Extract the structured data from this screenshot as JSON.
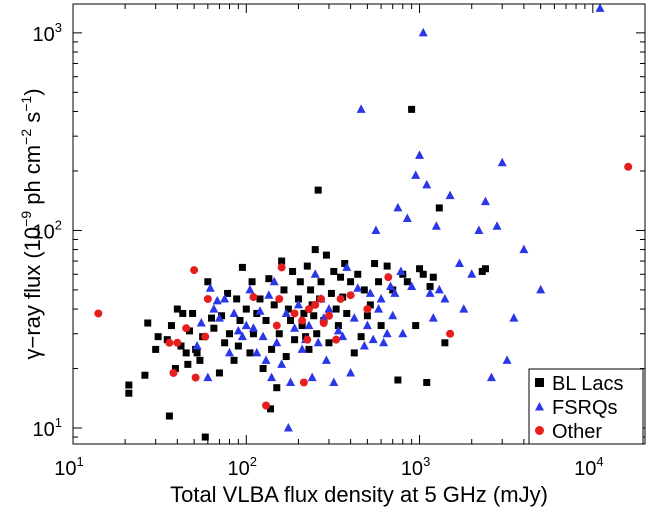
{
  "chart_data": {
    "type": "scatter",
    "title": "",
    "xlabel": "Total VLBA flux density at 5 GHz (mJy)",
    "ylabel": {
      "prefix": "γ−ray flux (10",
      "exp1": "−9",
      "mid": " ph cm",
      "exp2": "−2",
      "mid2": " s",
      "exp3": "−1",
      "suffix": ")"
    },
    "x_scale": "log",
    "y_scale": "log",
    "xlim": [
      10,
      20000
    ],
    "ylim": [
      8.3,
      1400
    ],
    "x_ticks": [
      {
        "value": 10,
        "base": "10",
        "exp": "1"
      },
      {
        "value": 100,
        "base": "10",
        "exp": "2"
      },
      {
        "value": 1000,
        "base": "10",
        "exp": "3"
      },
      {
        "value": 10000,
        "base": "10",
        "exp": "4"
      }
    ],
    "y_ticks": [
      {
        "value": 10,
        "base": "10",
        "exp": "1"
      },
      {
        "value": 100,
        "base": "10",
        "exp": "2"
      },
      {
        "value": 1000,
        "base": "10",
        "exp": "3"
      }
    ],
    "grid": false,
    "legend_position": "bottom-right",
    "series": [
      {
        "name": "BL Lacs",
        "marker": "square",
        "color": "#000000",
        "points": [
          [
            21,
            15
          ],
          [
            21,
            16.5
          ],
          [
            26,
            18.5
          ],
          [
            27,
            34
          ],
          [
            30,
            25
          ],
          [
            31,
            29
          ],
          [
            35,
            28
          ],
          [
            36,
            11.5
          ],
          [
            37,
            33
          ],
          [
            39,
            20
          ],
          [
            40,
            40
          ],
          [
            42,
            26
          ],
          [
            43,
            38
          ],
          [
            45,
            24
          ],
          [
            46,
            21
          ],
          [
            47,
            31
          ],
          [
            49,
            38
          ],
          [
            51,
            25
          ],
          [
            52,
            24
          ],
          [
            54,
            22
          ],
          [
            56,
            29
          ],
          [
            58,
            9
          ],
          [
            60,
            55
          ],
          [
            63,
            36
          ],
          [
            65,
            32
          ],
          [
            70,
            19
          ],
          [
            72,
            37
          ],
          [
            75,
            27
          ],
          [
            78,
            48
          ],
          [
            80,
            30
          ],
          [
            85,
            22
          ],
          [
            88,
            45
          ],
          [
            90,
            26
          ],
          [
            92,
            35
          ],
          [
            95,
            65
          ],
          [
            100,
            40
          ],
          [
            105,
            24
          ],
          [
            108,
            55
          ],
          [
            110,
            30
          ],
          [
            115,
            38
          ],
          [
            120,
            45
          ],
          [
            125,
            20
          ],
          [
            130,
            35
          ],
          [
            135,
            57
          ],
          [
            138,
            12.5
          ],
          [
            140,
            25
          ],
          [
            145,
            42
          ],
          [
            150,
            16
          ],
          [
            155,
            30
          ],
          [
            160,
            70
          ],
          [
            165,
            50
          ],
          [
            170,
            23
          ],
          [
            175,
            40
          ],
          [
            180,
            35
          ],
          [
            185,
            62
          ],
          [
            190,
            28
          ],
          [
            200,
            45
          ],
          [
            205,
            55
          ],
          [
            210,
            33
          ],
          [
            215,
            38
          ],
          [
            220,
            29
          ],
          [
            225,
            66
          ],
          [
            230,
            25
          ],
          [
            235,
            50
          ],
          [
            240,
            42
          ],
          [
            245,
            37
          ],
          [
            250,
            80
          ],
          [
            255,
            30
          ],
          [
            260,
            160
          ],
          [
            265,
            45
          ],
          [
            270,
            55
          ],
          [
            280,
            35
          ],
          [
            290,
            75
          ],
          [
            300,
            27
          ],
          [
            310,
            48
          ],
          [
            320,
            62
          ],
          [
            330,
            40
          ],
          [
            340,
            33
          ],
          [
            350,
            58
          ],
          [
            360,
            46
          ],
          [
            370,
            68
          ],
          [
            380,
            38
          ],
          [
            400,
            55
          ],
          [
            420,
            24
          ],
          [
            440,
            60
          ],
          [
            460,
            29
          ],
          [
            480,
            50
          ],
          [
            500,
            37
          ],
          [
            520,
            42
          ],
          [
            550,
            68
          ],
          [
            580,
            55
          ],
          [
            600,
            33
          ],
          [
            650,
            66
          ],
          [
            700,
            50
          ],
          [
            750,
            17.5
          ],
          [
            800,
            60
          ],
          [
            850,
            55
          ],
          [
            900,
            410
          ],
          [
            950,
            33
          ],
          [
            1000,
            64
          ],
          [
            1050,
            60
          ],
          [
            1100,
            17
          ],
          [
            1150,
            52
          ],
          [
            1200,
            58
          ],
          [
            1300,
            130
          ],
          [
            1400,
            27
          ],
          [
            2300,
            62
          ],
          [
            2400,
            64
          ]
        ]
      },
      {
        "name": "FSRQs",
        "marker": "triangle",
        "color": "#2a37e6",
        "points": [
          [
            52,
            26
          ],
          [
            55,
            34
          ],
          [
            60,
            18
          ],
          [
            62,
            51
          ],
          [
            65,
            40
          ],
          [
            68,
            44
          ],
          [
            70,
            36
          ],
          [
            75,
            45
          ],
          [
            80,
            24
          ],
          [
            85,
            38
          ],
          [
            90,
            31
          ],
          [
            95,
            29
          ],
          [
            100,
            33
          ],
          [
            105,
            50
          ],
          [
            110,
            32
          ],
          [
            115,
            24
          ],
          [
            120,
            39
          ],
          [
            125,
            29
          ],
          [
            130,
            22
          ],
          [
            135,
            47
          ],
          [
            140,
            18
          ],
          [
            145,
            55
          ],
          [
            150,
            27
          ],
          [
            160,
            21
          ],
          [
            170,
            38
          ],
          [
            175,
            10
          ],
          [
            180,
            17
          ],
          [
            190,
            32
          ],
          [
            200,
            42
          ],
          [
            210,
            25
          ],
          [
            220,
            28
          ],
          [
            230,
            33
          ],
          [
            240,
            18
          ],
          [
            250,
            60
          ],
          [
            260,
            27
          ],
          [
            270,
            45
          ],
          [
            280,
            36
          ],
          [
            290,
            22
          ],
          [
            300,
            40
          ],
          [
            320,
            17
          ],
          [
            340,
            31
          ],
          [
            360,
            29
          ],
          [
            380,
            65
          ],
          [
            400,
            19
          ],
          [
            420,
            36
          ],
          [
            440,
            51
          ],
          [
            460,
            410
          ],
          [
            480,
            26
          ],
          [
            500,
            33
          ],
          [
            520,
            48
          ],
          [
            540,
            28
          ],
          [
            560,
            100
          ],
          [
            580,
            40
          ],
          [
            600,
            45
          ],
          [
            620,
            27
          ],
          [
            650,
            30
          ],
          [
            680,
            52
          ],
          [
            700,
            37
          ],
          [
            720,
            48
          ],
          [
            750,
            130
          ],
          [
            780,
            62
          ],
          [
            800,
            30
          ],
          [
            850,
            115
          ],
          [
            900,
            52
          ],
          [
            950,
            190
          ],
          [
            1000,
            240
          ],
          [
            1050,
            1000
          ],
          [
            1100,
            170
          ],
          [
            1150,
            48
          ],
          [
            1200,
            36
          ],
          [
            1250,
            105
          ],
          [
            1300,
            50
          ],
          [
            1400,
            45
          ],
          [
            1500,
            150
          ],
          [
            1700,
            68
          ],
          [
            1800,
            40
          ],
          [
            2000,
            60
          ],
          [
            2200,
            100
          ],
          [
            2400,
            140
          ],
          [
            2600,
            18
          ],
          [
            2800,
            105
          ],
          [
            3000,
            220
          ],
          [
            3200,
            22
          ],
          [
            3500,
            36
          ],
          [
            4000,
            80
          ],
          [
            5000,
            50
          ],
          [
            11000,
            1330
          ]
        ]
      },
      {
        "name": "Other",
        "marker": "circle",
        "color": "#e61e1e",
        "points": [
          [
            14,
            38
          ],
          [
            36,
            27
          ],
          [
            38,
            19
          ],
          [
            40,
            27
          ],
          [
            45,
            32
          ],
          [
            50,
            63
          ],
          [
            51,
            18
          ],
          [
            58,
            29
          ],
          [
            60,
            45
          ],
          [
            110,
            46
          ],
          [
            130,
            13
          ],
          [
            150,
            33
          ],
          [
            155,
            45
          ],
          [
            160,
            65
          ],
          [
            190,
            38
          ],
          [
            210,
            35
          ],
          [
            215,
            17
          ],
          [
            225,
            28
          ],
          [
            230,
            40
          ],
          [
            250,
            42
          ],
          [
            270,
            45
          ],
          [
            280,
            34
          ],
          [
            300,
            37
          ],
          [
            330,
            28
          ],
          [
            350,
            45
          ],
          [
            400,
            47
          ],
          [
            500,
            40
          ],
          [
            660,
            58
          ],
          [
            1500,
            30
          ],
          [
            16000,
            210
          ]
        ]
      }
    ]
  }
}
